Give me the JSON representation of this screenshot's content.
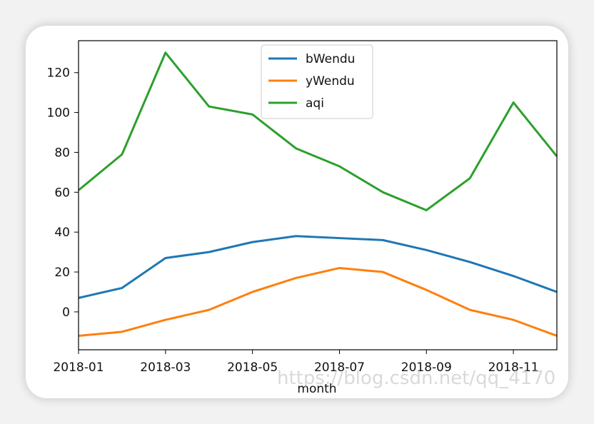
{
  "chart_data": {
    "type": "line",
    "x": [
      "2018-01",
      "2018-02",
      "2018-03",
      "2018-04",
      "2018-05",
      "2018-06",
      "2018-07",
      "2018-08",
      "2018-09",
      "2018-10",
      "2018-11",
      "2018-12"
    ],
    "xlabel": "month",
    "x_tick_labels": [
      "2018-01",
      "2018-03",
      "2018-05",
      "2018-07",
      "2018-09",
      "2018-11"
    ],
    "ylabel": "",
    "ylim": [
      -19,
      136
    ],
    "y_ticks": [
      0,
      20,
      40,
      60,
      80,
      100,
      120
    ],
    "grid": false,
    "legend_position": "top-center",
    "series": [
      {
        "name": "bWendu",
        "color": "#1f77b4",
        "values": [
          7,
          12,
          27,
          30,
          35,
          38,
          37,
          36,
          31,
          25,
          18,
          10
        ]
      },
      {
        "name": "yWendu",
        "color": "#ff7f0e",
        "values": [
          -12,
          -10,
          -4,
          1,
          10,
          17,
          22,
          20,
          11,
          1,
          -4,
          -12
        ]
      },
      {
        "name": "aqi",
        "color": "#2ca02c",
        "values": [
          61,
          79,
          130,
          103,
          99,
          82,
          73,
          60,
          51,
          67,
          105,
          78
        ]
      }
    ]
  },
  "watermark": "https://blog.csdn.net/qq_4170"
}
